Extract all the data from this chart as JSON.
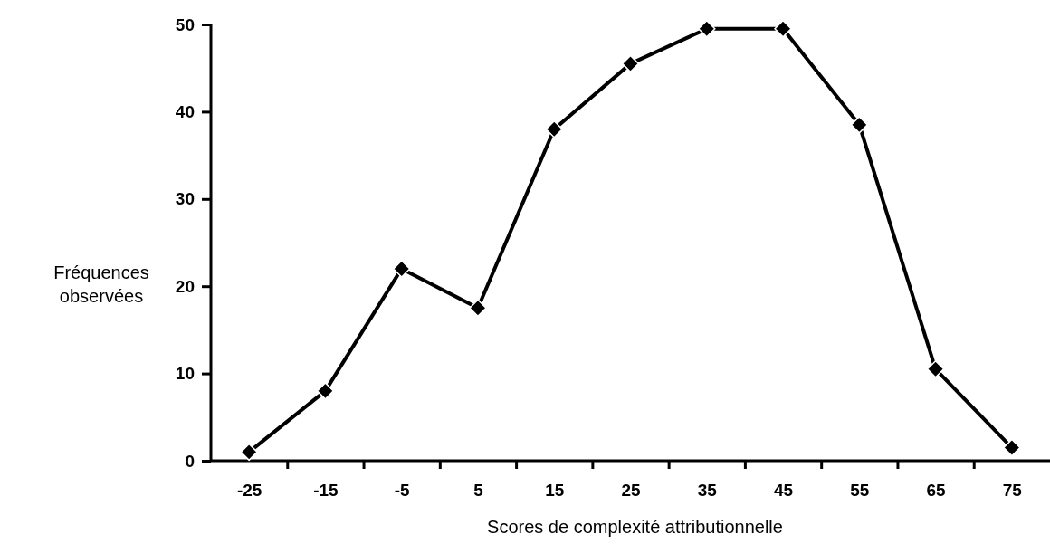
{
  "chart_data": {
    "type": "line",
    "xlabel": "Scores de complexité attributionnelle",
    "ylabel": "Fréquences observées",
    "x": [
      -25,
      -15,
      -5,
      5,
      15,
      25,
      35,
      45,
      55,
      65,
      75
    ],
    "series": [
      {
        "color": "#000000",
        "values": [
          1,
          8,
          22,
          17.5,
          38,
          45.5,
          49.5,
          49.5,
          38.5,
          10.5,
          1.5
        ]
      }
    ],
    "xlim": [
      -30,
      80
    ],
    "xticks": [
      -25,
      {
        "value": -20,
        "label": null
      },
      -15,
      {
        "value": -10,
        "label": null
      },
      -5,
      {
        "value": 0,
        "label": null
      },
      5,
      {
        "value": 10,
        "label": null
      },
      15,
      {
        "value": 20,
        "label": null
      },
      25,
      {
        "value": 30,
        "label": null
      },
      35,
      {
        "value": 40,
        "label": null
      },
      45,
      {
        "value": 50,
        "label": null
      },
      55,
      {
        "value": 60,
        "label": null
      },
      65,
      {
        "value": 70,
        "label": null
      },
      75
    ],
    "ylim": [
      0,
      50
    ],
    "yticks": [
      0,
      10,
      20,
      30,
      40,
      50
    ],
    "marker": "diamond",
    "line_style": "solid",
    "grid": false
  }
}
